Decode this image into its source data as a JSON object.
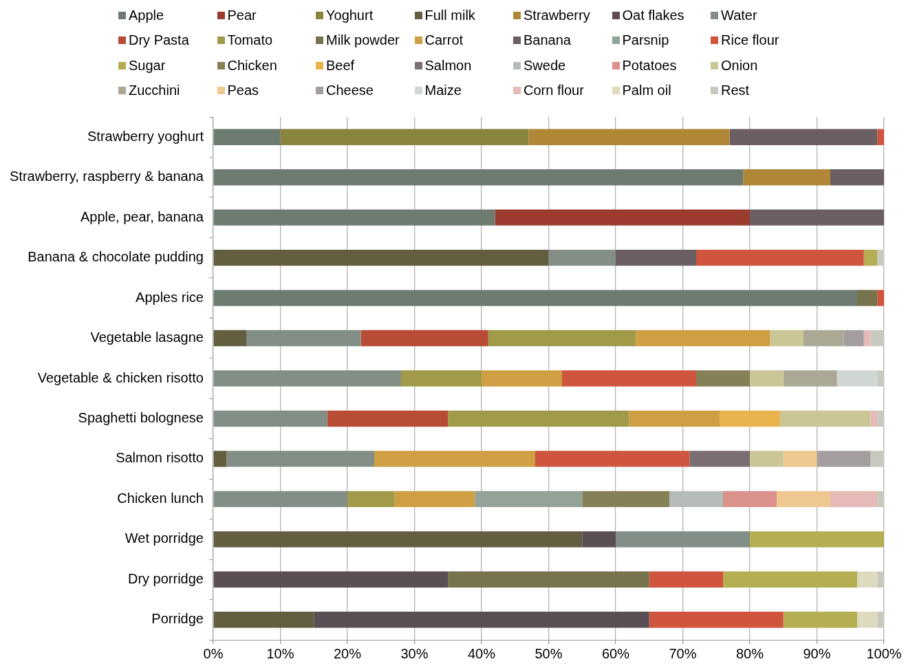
{
  "chart_data": {
    "type": "bar",
    "orientation": "horizontal",
    "stacked": true,
    "grid": "x",
    "legend": "top",
    "categories": [
      "Strawberry yoghurt",
      "Strawberry, raspberry & banana",
      "Apple, pear, banana",
      "Banana & chocolate pudding",
      "Apples rice",
      "Vegetable lasagne",
      "Vegetable & chicken risotto",
      "Spaghetti bolognese",
      "Salmon risotto",
      "Chicken lunch",
      "Wet porridge",
      "Dry porridge",
      "Porridge"
    ],
    "xlim": [
      0,
      100
    ],
    "xticks": [
      {
        "value": 0,
        "label": "0%"
      },
      {
        "value": 10,
        "label": "10%"
      },
      {
        "value": 20,
        "label": "20%"
      },
      {
        "value": 30,
        "label": "30%"
      },
      {
        "value": 40,
        "label": "40%"
      },
      {
        "value": 50,
        "label": "50%"
      },
      {
        "value": 60,
        "label": "60%"
      },
      {
        "value": 70,
        "label": "70%"
      },
      {
        "value": 80,
        "label": "80%"
      },
      {
        "value": 90,
        "label": "90%"
      },
      {
        "value": 100,
        "label": "100%"
      }
    ],
    "series": [
      {
        "name": "Apple",
        "color": "#6e7b70",
        "values": [
          10,
          79,
          42,
          null,
          96,
          null,
          null,
          null,
          null,
          null,
          null,
          null,
          null
        ]
      },
      {
        "name": "Pear",
        "color": "#9c3c2e",
        "values": [
          null,
          null,
          38,
          null,
          null,
          null,
          null,
          null,
          null,
          null,
          null,
          null,
          null
        ]
      },
      {
        "name": "Yoghurt",
        "color": "#89843e",
        "values": [
          37,
          null,
          null,
          null,
          null,
          null,
          null,
          null,
          null,
          null,
          null,
          null,
          null
        ]
      },
      {
        "name": "Full milk",
        "color": "#625e3f",
        "values": [
          null,
          null,
          null,
          50,
          null,
          5,
          null,
          null,
          2,
          null,
          55,
          null,
          15
        ]
      },
      {
        "name": "Strawberry",
        "color": "#b08737",
        "values": [
          30,
          13,
          null,
          null,
          null,
          null,
          null,
          null,
          null,
          null,
          null,
          null,
          null
        ]
      },
      {
        "name": "Oat flakes",
        "color": "#5a4f55",
        "values": [
          null,
          null,
          null,
          null,
          null,
          null,
          null,
          null,
          null,
          null,
          5,
          35,
          50
        ]
      },
      {
        "name": "Water",
        "color": "#838f86",
        "values": [
          null,
          null,
          null,
          10,
          null,
          17,
          28,
          17,
          22,
          20,
          20,
          null,
          null
        ]
      },
      {
        "name": "Dry Pasta",
        "color": "#b84c37",
        "values": [
          null,
          null,
          null,
          null,
          null,
          19,
          null,
          18,
          null,
          null,
          null,
          null,
          null
        ]
      },
      {
        "name": "Tomato",
        "color": "#a19b49",
        "values": [
          null,
          null,
          null,
          null,
          null,
          22,
          12,
          27,
          null,
          7,
          null,
          null,
          null
        ]
      },
      {
        "name": "Milk powder",
        "color": "#76734d",
        "values": [
          null,
          null,
          null,
          null,
          3,
          null,
          null,
          null,
          null,
          null,
          null,
          30,
          null
        ]
      },
      {
        "name": "Carrot",
        "color": "#cf9f43",
        "values": [
          null,
          null,
          null,
          null,
          null,
          20,
          12,
          13.5,
          24,
          12,
          null,
          null,
          null
        ]
      },
      {
        "name": "Banana",
        "color": "#6b5f64",
        "values": [
          22,
          8,
          20,
          12,
          null,
          null,
          null,
          null,
          null,
          null,
          null,
          null,
          null
        ]
      },
      {
        "name": "Parsnip",
        "color": "#93a398",
        "values": [
          null,
          null,
          null,
          null,
          null,
          null,
          null,
          null,
          null,
          16,
          null,
          null,
          null
        ]
      },
      {
        "name": "Rice flour",
        "color": "#d0553f",
        "values": [
          1,
          null,
          null,
          25,
          1,
          null,
          20,
          null,
          23,
          null,
          null,
          11,
          20
        ]
      },
      {
        "name": "Sugar",
        "color": "#b5ae53",
        "values": [
          null,
          null,
          null,
          2,
          null,
          null,
          null,
          null,
          null,
          null,
          20,
          20,
          11
        ]
      },
      {
        "name": "Chicken",
        "color": "#858055",
        "values": [
          null,
          null,
          null,
          null,
          null,
          null,
          8,
          null,
          null,
          13,
          null,
          null,
          null
        ]
      },
      {
        "name": "Beef",
        "color": "#e8b24c",
        "values": [
          null,
          null,
          null,
          null,
          null,
          null,
          null,
          9,
          null,
          null,
          null,
          null,
          null
        ]
      },
      {
        "name": "Salmon",
        "color": "#7a6e72",
        "values": [
          null,
          null,
          null,
          null,
          null,
          null,
          null,
          null,
          9,
          null,
          null,
          null,
          null
        ]
      },
      {
        "name": "Swede",
        "color": "#b6bdb8",
        "values": [
          null,
          null,
          null,
          null,
          null,
          null,
          null,
          null,
          null,
          8,
          null,
          null,
          null
        ]
      },
      {
        "name": "Potatoes",
        "color": "#db928c",
        "values": [
          null,
          null,
          null,
          null,
          null,
          null,
          null,
          null,
          null,
          8,
          null,
          null,
          null
        ]
      },
      {
        "name": "Onion",
        "color": "#cbc696",
        "values": [
          null,
          null,
          null,
          null,
          null,
          5,
          5,
          13.5,
          5,
          null,
          null,
          null,
          null
        ]
      },
      {
        "name": "Zucchini",
        "color": "#aba996",
        "values": [
          null,
          null,
          null,
          null,
          null,
          6,
          8,
          null,
          null,
          null,
          null,
          null,
          null
        ]
      },
      {
        "name": "Peas",
        "color": "#eec890",
        "values": [
          null,
          null,
          null,
          null,
          null,
          null,
          null,
          null,
          5,
          8,
          null,
          null,
          null
        ]
      },
      {
        "name": "Cheese",
        "color": "#a49ea0",
        "values": [
          null,
          null,
          null,
          null,
          null,
          3,
          null,
          null,
          8,
          null,
          null,
          null,
          null
        ]
      },
      {
        "name": "Maize",
        "color": "#d0d6d2",
        "values": [
          null,
          null,
          null,
          null,
          null,
          null,
          6,
          null,
          null,
          null,
          null,
          null,
          null
        ]
      },
      {
        "name": "Corn flour",
        "color": "#e6bab6",
        "values": [
          null,
          null,
          null,
          null,
          null,
          1,
          null,
          1,
          null,
          7,
          null,
          null,
          null
        ]
      },
      {
        "name": "Palm oil",
        "color": "#dddac0",
        "values": [
          null,
          null,
          null,
          null,
          null,
          null,
          null,
          null,
          null,
          null,
          null,
          3,
          3
        ]
      },
      {
        "name": "Rest",
        "color": "#c8c9be",
        "values": [
          null,
          null,
          null,
          1,
          null,
          2,
          1,
          1,
          2,
          1,
          null,
          1,
          1
        ]
      }
    ]
  }
}
